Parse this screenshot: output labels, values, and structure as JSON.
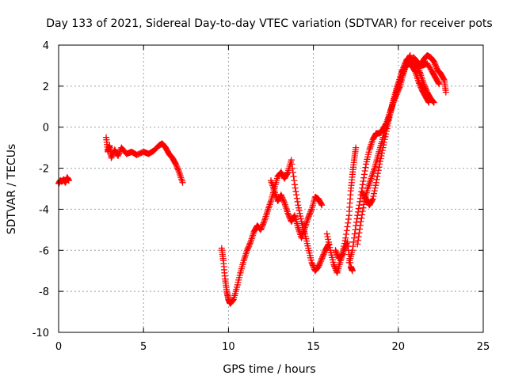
{
  "chart_data": {
    "type": "scatter",
    "title": "Day 133 of 2021, Sidereal Day-to-day VTEC variation (SDTVAR) for receiver pots",
    "xlabel": "GPS time / hours",
    "ylabel": "SDTVAR / TECUs",
    "xlim": [
      0,
      25
    ],
    "ylim": [
      -10,
      4
    ],
    "xticks": [
      0,
      5,
      10,
      15,
      20,
      25
    ],
    "yticks": [
      -10,
      -8,
      -6,
      -4,
      -2,
      0,
      2,
      4
    ],
    "grid": true,
    "marker": "+",
    "series_color": "#ff0000",
    "series": [
      {
        "segments": [
          [
            [
              0.0,
              -2.75
            ],
            [
              0.1,
              -2.6
            ],
            [
              0.2,
              -2.65
            ],
            [
              0.3,
              -2.55
            ],
            [
              0.4,
              -2.7
            ],
            [
              0.5,
              -2.45
            ],
            [
              0.6,
              -2.6
            ]
          ],
          [
            [
              2.8,
              -0.5
            ],
            [
              2.9,
              -1.2
            ],
            [
              3.0,
              -0.9
            ],
            [
              3.1,
              -1.5
            ],
            [
              3.3,
              -1.1
            ],
            [
              3.5,
              -1.4
            ],
            [
              3.7,
              -1.0
            ],
            [
              4.0,
              -1.3
            ],
            [
              4.3,
              -1.2
            ],
            [
              4.6,
              -1.35
            ],
            [
              5.0,
              -1.2
            ],
            [
              5.3,
              -1.3
            ],
            [
              5.6,
              -1.15
            ],
            [
              5.9,
              -0.9
            ],
            [
              6.1,
              -0.8
            ],
            [
              6.3,
              -1.0
            ],
            [
              6.5,
              -1.3
            ],
            [
              6.7,
              -1.5
            ],
            [
              6.9,
              -1.8
            ],
            [
              7.1,
              -2.2
            ],
            [
              7.3,
              -2.7
            ]
          ],
          [
            [
              9.6,
              -5.9
            ],
            [
              9.7,
              -6.5
            ],
            [
              9.8,
              -7.4
            ],
            [
              9.9,
              -8.0
            ],
            [
              10.0,
              -8.4
            ],
            [
              10.1,
              -8.6
            ],
            [
              10.3,
              -8.4
            ],
            [
              10.5,
              -7.8
            ],
            [
              10.7,
              -7.1
            ],
            [
              10.9,
              -6.5
            ],
            [
              11.1,
              -6.0
            ],
            [
              11.3,
              -5.6
            ],
            [
              11.5,
              -5.1
            ],
            [
              11.7,
              -4.8
            ],
            [
              11.9,
              -5.0
            ],
            [
              12.1,
              -4.6
            ],
            [
              12.3,
              -4.1
            ],
            [
              12.5,
              -3.6
            ],
            [
              12.7,
              -3.0
            ],
            [
              12.9,
              -2.4
            ],
            [
              13.1,
              -2.2
            ],
            [
              13.3,
              -2.5
            ],
            [
              13.5,
              -2.2
            ],
            [
              13.7,
              -1.6
            ],
            [
              13.9,
              -2.8
            ],
            [
              14.1,
              -3.8
            ],
            [
              14.3,
              -4.6
            ],
            [
              14.5,
              -5.2
            ],
            [
              14.7,
              -5.9
            ],
            [
              14.9,
              -6.6
            ],
            [
              15.1,
              -7.0
            ],
            [
              15.3,
              -6.8
            ],
            [
              15.5,
              -6.4
            ],
            [
              15.7,
              -6.0
            ],
            [
              15.9,
              -5.7
            ]
          ],
          [
            [
              12.5,
              -2.6
            ],
            [
              12.7,
              -3.1
            ],
            [
              12.9,
              -3.6
            ],
            [
              13.1,
              -3.3
            ],
            [
              13.3,
              -3.7
            ],
            [
              13.5,
              -4.2
            ],
            [
              13.7,
              -4.6
            ],
            [
              13.9,
              -4.3
            ],
            [
              14.1,
              -4.9
            ],
            [
              14.3,
              -5.4
            ],
            [
              14.5,
              -4.9
            ],
            [
              14.7,
              -4.4
            ],
            [
              14.9,
              -4.0
            ],
            [
              15.1,
              -3.4
            ],
            [
              15.3,
              -3.5
            ],
            [
              15.5,
              -3.8
            ]
          ],
          [
            [
              15.8,
              -5.2
            ],
            [
              16.0,
              -6.0
            ],
            [
              16.2,
              -6.7
            ],
            [
              16.4,
              -7.1
            ],
            [
              16.6,
              -6.5
            ],
            [
              16.8,
              -6.0
            ],
            [
              17.0,
              -5.6
            ],
            [
              17.2,
              -6.8
            ],
            [
              17.3,
              -7.0
            ]
          ],
          [
            [
              16.3,
              -6.0
            ],
            [
              16.5,
              -6.4
            ],
            [
              16.7,
              -6.2
            ],
            [
              16.9,
              -5.4
            ],
            [
              17.1,
              -4.3
            ],
            [
              17.2,
              -3.1
            ],
            [
              17.3,
              -2.3
            ],
            [
              17.4,
              -1.6
            ],
            [
              17.5,
              -1.0
            ]
          ],
          [
            [
              17.1,
              -6.6
            ],
            [
              17.3,
              -6.0
            ],
            [
              17.5,
              -4.8
            ],
            [
              17.7,
              -3.8
            ],
            [
              17.9,
              -2.8
            ],
            [
              18.1,
              -1.8
            ],
            [
              18.3,
              -1.1
            ],
            [
              18.5,
              -0.6
            ],
            [
              18.7,
              -0.3
            ],
            [
              18.9,
              -0.3
            ],
            [
              19.1,
              -0.1
            ],
            [
              19.3,
              0.2
            ],
            [
              19.5,
              0.7
            ],
            [
              19.7,
              1.2
            ],
            [
              19.9,
              1.6
            ],
            [
              20.1,
              2.0
            ],
            [
              20.3,
              2.6
            ],
            [
              20.5,
              3.2
            ],
            [
              20.7,
              3.5
            ]
          ],
          [
            [
              17.6,
              -5.7
            ],
            [
              17.8,
              -4.6
            ],
            [
              18.0,
              -3.6
            ],
            [
              18.2,
              -3.0
            ],
            [
              18.4,
              -2.5
            ],
            [
              18.6,
              -2.0
            ],
            [
              18.8,
              -1.4
            ],
            [
              19.0,
              -0.8
            ],
            [
              19.2,
              -0.2
            ],
            [
              19.4,
              0.3
            ],
            [
              19.6,
              0.9
            ],
            [
              19.8,
              1.5
            ],
            [
              20.0,
              2.0
            ],
            [
              20.2,
              2.5
            ],
            [
              20.4,
              2.9
            ],
            [
              20.6,
              3.1
            ],
            [
              20.8,
              3.0
            ],
            [
              21.0,
              2.7
            ],
            [
              21.2,
              2.2
            ],
            [
              21.4,
              1.8
            ],
            [
              21.6,
              1.5
            ],
            [
              21.8,
              1.2
            ]
          ],
          [
            [
              17.9,
              -3.2
            ],
            [
              18.1,
              -3.5
            ],
            [
              18.3,
              -3.8
            ],
            [
              18.5,
              -3.5
            ],
            [
              18.7,
              -2.7
            ],
            [
              18.9,
              -1.8
            ],
            [
              19.1,
              -1.0
            ],
            [
              19.3,
              -0.2
            ],
            [
              19.5,
              0.6
            ],
            [
              19.7,
              1.3
            ],
            [
              19.9,
              1.9
            ],
            [
              20.1,
              2.4
            ],
            [
              20.3,
              2.9
            ],
            [
              20.5,
              3.3
            ],
            [
              20.7,
              3.4
            ],
            [
              20.9,
              3.2
            ],
            [
              21.1,
              3.0
            ],
            [
              21.3,
              2.6
            ],
            [
              21.5,
              2.1
            ],
            [
              21.7,
              1.7
            ],
            [
              21.9,
              1.4
            ],
            [
              22.1,
              1.2
            ]
          ],
          [
            [
              20.9,
              3.4
            ],
            [
              21.1,
              3.2
            ],
            [
              21.3,
              3.0
            ],
            [
              21.5,
              3.3
            ],
            [
              21.7,
              3.5
            ],
            [
              21.9,
              3.4
            ],
            [
              22.1,
              3.2
            ],
            [
              22.3,
              2.8
            ],
            [
              22.5,
              2.6
            ],
            [
              22.7,
              2.3
            ],
            [
              22.8,
              1.7
            ]
          ],
          [
            [
              20.2,
              2.7
            ],
            [
              20.5,
              3.1
            ],
            [
              20.8,
              3.2
            ],
            [
              21.1,
              3.1
            ],
            [
              21.4,
              3.0
            ],
            [
              21.7,
              3.1
            ],
            [
              22.0,
              2.7
            ],
            [
              22.2,
              2.4
            ],
            [
              22.4,
              2.1
            ]
          ]
        ]
      }
    ]
  }
}
